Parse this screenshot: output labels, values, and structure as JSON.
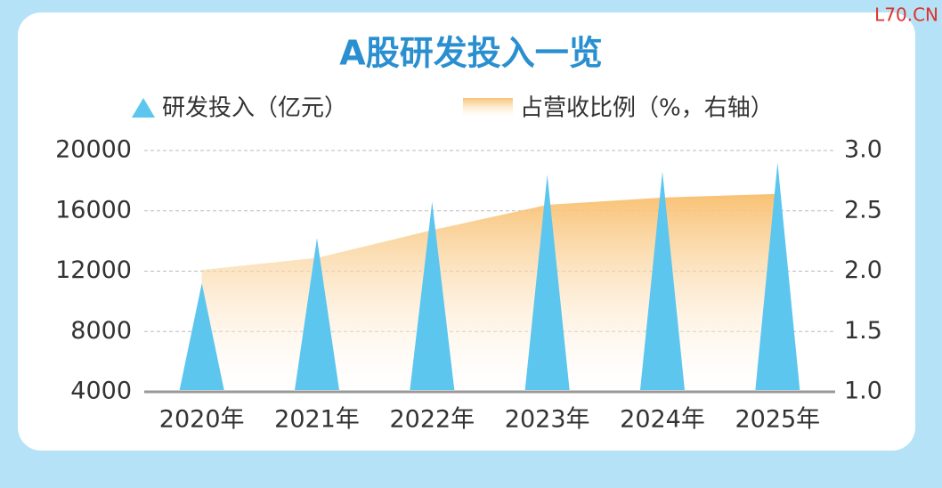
{
  "watermark": "L70.CN",
  "chart_data": {
    "type": "combo",
    "title": "A股研发投入一览",
    "categories": [
      "2020年",
      "2021年",
      "2022年",
      "2023年",
      "2024年",
      "2025年"
    ],
    "series": [
      {
        "name": "研发投入（亿元）",
        "type": "triangle",
        "color": "#5cc6ee",
        "values": [
          11200,
          14200,
          16600,
          18400,
          18600,
          19200
        ]
      },
      {
        "name": "占营收比例（%，右轴）",
        "type": "area",
        "axis": "y2",
        "color": "#f8be6c",
        "values": [
          2.01,
          2.11,
          2.34,
          2.55,
          2.61,
          2.64
        ]
      }
    ],
    "ylim": [
      4000,
      20000
    ],
    "yticks": [
      4000,
      8000,
      12000,
      16000,
      20000
    ],
    "y2lim": [
      1,
      3
    ],
    "y2ticks": [
      {
        "value": 1,
        "label": "1.0"
      },
      1.5,
      {
        "value": 2,
        "label": "2.0"
      },
      2.5,
      {
        "value": 3,
        "label": "3.0"
      }
    ],
    "grid": true
  }
}
